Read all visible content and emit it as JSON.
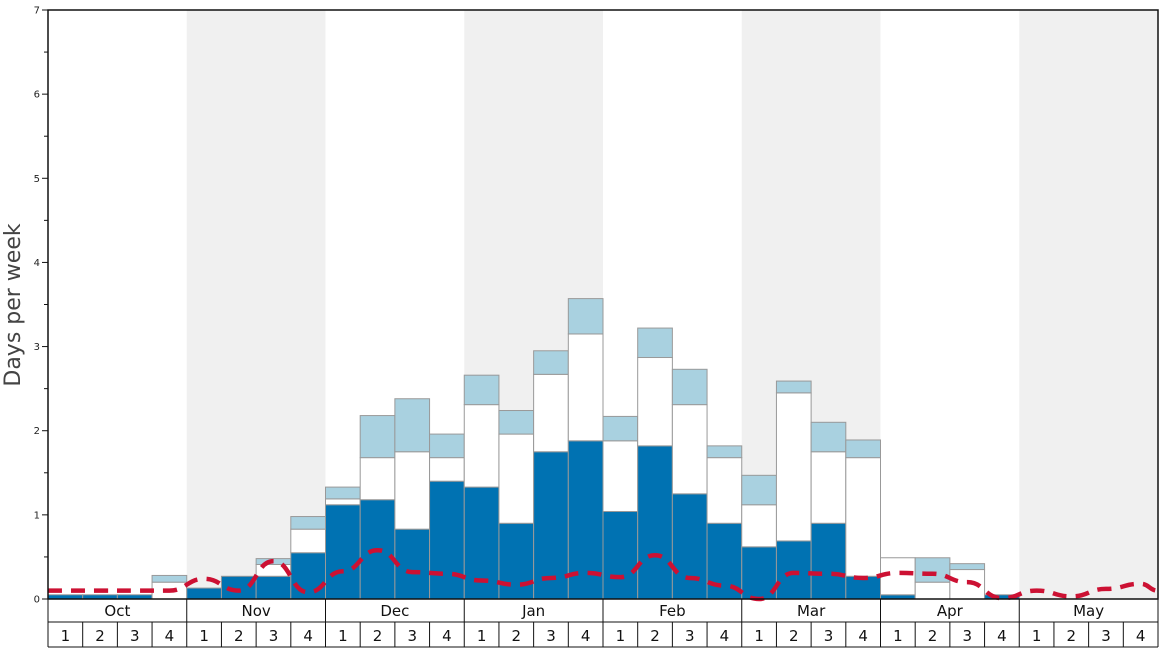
{
  "chart_data": {
    "type": "bar",
    "ylabel": "Days per week",
    "ylim": [
      0,
      7
    ],
    "y_ticks": [
      "0",
      "1",
      "2",
      "3",
      "4",
      "5",
      "6",
      "7"
    ],
    "months": [
      "Oct",
      "Nov",
      "Dec",
      "Jan",
      "Feb",
      "Mar",
      "Apr",
      "May"
    ],
    "week_labels": [
      "1",
      "2",
      "3",
      "4"
    ],
    "stack_order": [
      "dark",
      "white",
      "light"
    ],
    "colors": {
      "dark": "#0072b2",
      "white": "#ffffff",
      "light": "#a9d1e0",
      "dashed_line": "#cc1133",
      "band_shade": "#f0f0f0",
      "bar_border": "#999999"
    },
    "series": [
      {
        "key": "dark",
        "values": [
          0.05,
          0.05,
          0.05,
          0.0,
          0.13,
          0.27,
          0.27,
          0.55,
          1.12,
          1.18,
          0.83,
          1.4,
          1.33,
          0.9,
          1.75,
          1.88,
          1.04,
          1.82,
          1.25,
          0.9,
          0.62,
          0.69,
          0.9,
          0.27,
          0.05,
          0.0,
          0.0,
          0.05,
          0,
          0,
          0,
          0
        ]
      },
      {
        "key": "white",
        "values": [
          0,
          0,
          0,
          0.2,
          0,
          0,
          0.14,
          0.28,
          0.07,
          0.5,
          0.92,
          0.28,
          0.98,
          1.06,
          0.92,
          1.27,
          0.84,
          1.05,
          1.06,
          0.78,
          0.5,
          1.76,
          0.85,
          1.41,
          0.44,
          0.2,
          0.35,
          0.0,
          0,
          0,
          0,
          0
        ]
      },
      {
        "key": "light",
        "values": [
          0,
          0,
          0,
          0.08,
          0,
          0,
          0.07,
          0.15,
          0.14,
          0.5,
          0.63,
          0.28,
          0.35,
          0.28,
          0.28,
          0.42,
          0.29,
          0.35,
          0.42,
          0.14,
          0.35,
          0.14,
          0.35,
          0.21,
          0,
          0.29,
          0.07,
          0.0,
          0,
          0,
          0,
          0
        ]
      },
      {
        "key": "dashed_line",
        "values": [
          0.1,
          0.1,
          0.1,
          0.1,
          0.24,
          0.1,
          0.45,
          0.08,
          0.33,
          0.58,
          0.32,
          0.3,
          0.22,
          0.17,
          0.25,
          0.31,
          0.26,
          0.52,
          0.25,
          0.16,
          0.0,
          0.31,
          0.3,
          0.25,
          0.31,
          0.3,
          0.2,
          0.01,
          0.1,
          0.03,
          0.12,
          0.18
        ]
      }
    ],
    "line_end_value": 0.1,
    "grid": false
  }
}
